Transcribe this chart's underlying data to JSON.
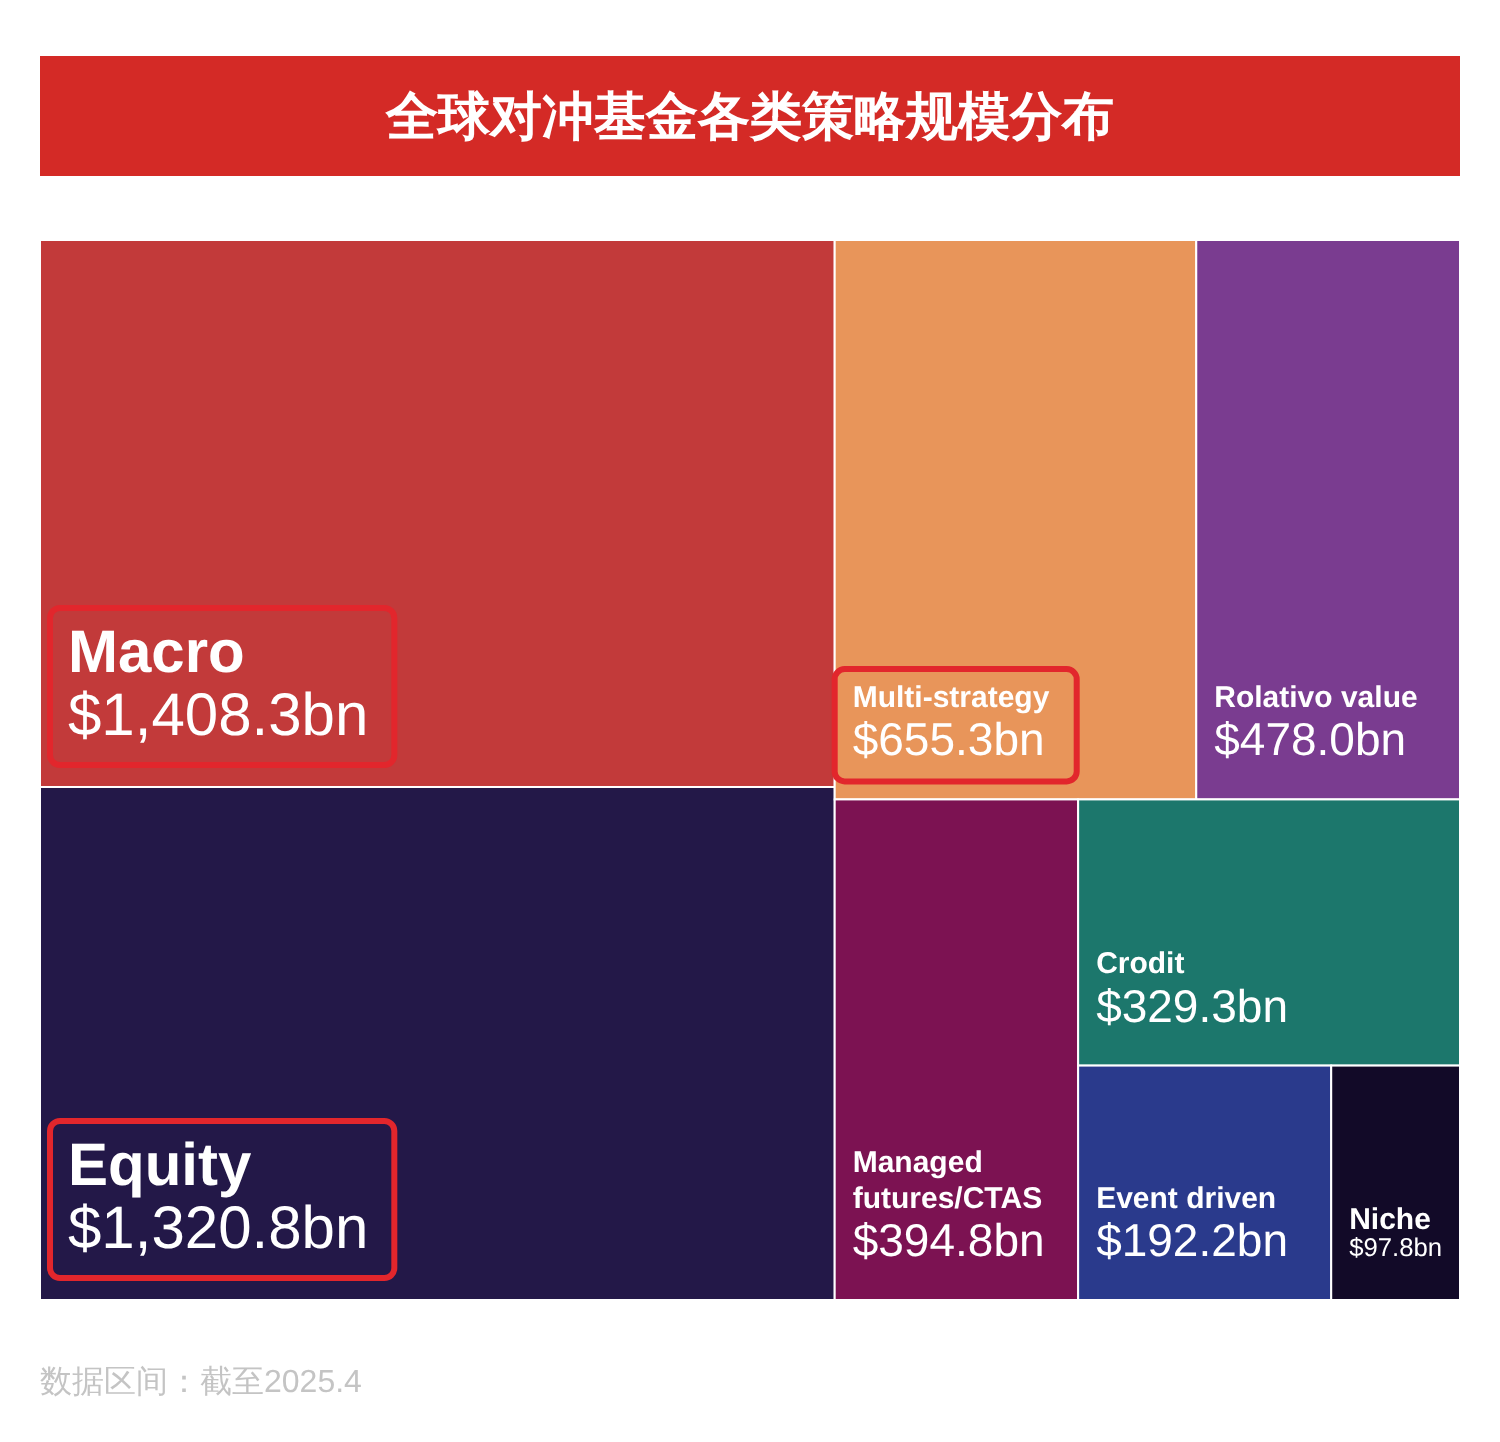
{
  "chart_data": {
    "type": "other",
    "title": "全球对冲基金各类策略规模分布",
    "categories": [
      "Macro",
      "Equity",
      "Multi-strategy",
      "Rolativo value",
      "Managed futures/CTAS",
      "Crodit",
      "Event driven",
      "Niche"
    ],
    "values": [
      1408.3,
      1320.8,
      655.3,
      478.0,
      394.8,
      329.3,
      192.2,
      97.8
    ],
    "value_labels": [
      "$1,408.3bn",
      "$1,320.8bn",
      "$655.3bn",
      "$478.0bn",
      "$394.8bn",
      "$329.3bn",
      "$192.2bn",
      "$97.8bn"
    ],
    "colors": [
      "#c23a3a",
      "#231848",
      "#e8955a",
      "#7a3c90",
      "#7c1252",
      "#1c776c",
      "#2a3a8c",
      "#120a28"
    ],
    "annotations": [
      "数据区间：截至2025.4"
    ]
  }
}
